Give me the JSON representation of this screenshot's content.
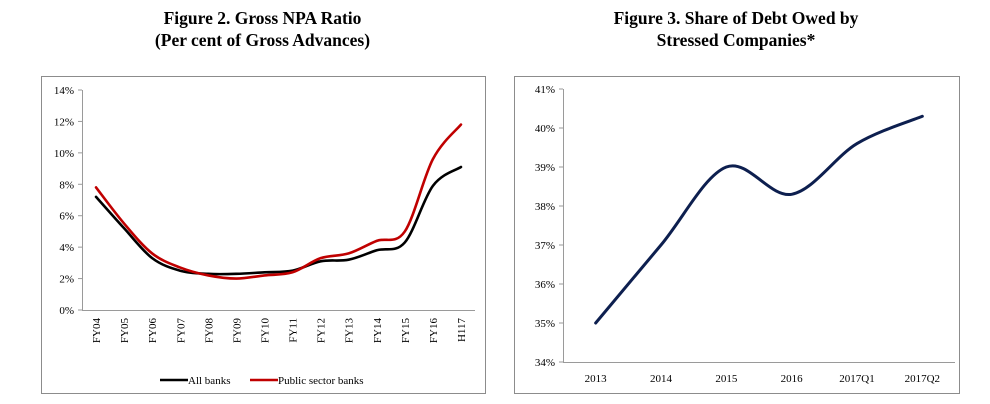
{
  "chart_data": [
    {
      "type": "line",
      "title_line1": "Figure 2. Gross NPA Ratio",
      "title_line2": "(Per cent of Gross Advances)",
      "categories": [
        "FY04",
        "FY05",
        "FY06",
        "FY07",
        "FY08",
        "FY09",
        "FY10",
        "FY11",
        "FY12",
        "FY13",
        "FY14",
        "FY15",
        "FY16",
        "H117"
      ],
      "ylim": [
        0,
        14
      ],
      "yticks": [
        {
          "value": 0,
          "label": "0%"
        },
        {
          "value": 2,
          "label": "2%"
        },
        {
          "value": 4,
          "label": "4%"
        },
        {
          "value": 6,
          "label": "6%"
        },
        {
          "value": 8,
          "label": "8%"
        },
        {
          "value": 10,
          "label": "10%"
        },
        {
          "value": 12,
          "label": "12%"
        },
        {
          "value": 14,
          "label": "14%"
        }
      ],
      "series": [
        {
          "name": "All banks",
          "color": "#000000",
          "values": [
            7.2,
            5.2,
            3.3,
            2.5,
            2.3,
            2.3,
            2.4,
            2.5,
            3.1,
            3.2,
            3.8,
            4.3,
            7.9,
            9.1
          ]
        },
        {
          "name": "Public sector banks",
          "color": "#c00000",
          "values": [
            7.8,
            5.5,
            3.6,
            2.7,
            2.2,
            2.0,
            2.2,
            2.4,
            3.3,
            3.6,
            4.4,
            5.0,
            9.6,
            11.8
          ]
        }
      ],
      "legend_position": "bottom",
      "grid": false
    },
    {
      "type": "line",
      "title_line1": "Figure 3. Share of Debt Owed by",
      "title_line2": "Stressed Companies*",
      "categories": [
        "2013",
        "2014",
        "2015",
        "2016",
        "2017Q1",
        "2017Q2"
      ],
      "ylim": [
        34,
        41
      ],
      "yticks": [
        {
          "value": 34,
          "label": "34%"
        },
        {
          "value": 35,
          "label": "35%"
        },
        {
          "value": 36,
          "label": "36%"
        },
        {
          "value": 37,
          "label": "37%"
        },
        {
          "value": 38,
          "label": "38%"
        },
        {
          "value": 39,
          "label": "39%"
        },
        {
          "value": 40,
          "label": "40%"
        },
        {
          "value": 41,
          "label": "41%"
        }
      ],
      "series": [
        {
          "color": "#0d1f4f",
          "values": [
            35.0,
            37.0,
            39.0,
            38.3,
            39.6,
            40.3
          ]
        }
      ],
      "grid": false
    }
  ]
}
